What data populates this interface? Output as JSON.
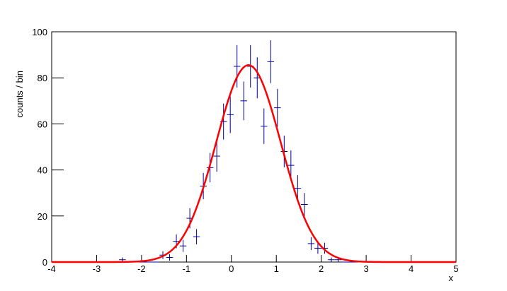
{
  "chart_data": {
    "type": "histogram",
    "x_label": "x",
    "y_label": "counts / bin",
    "bins": [
      -4,
      -3.85,
      -3.7,
      -3.55,
      -3.4,
      -3.25,
      -3.1,
      -2.95,
      -2.8,
      -2.65,
      -2.5,
      -2.35,
      -2.2,
      -2.05,
      -1.9,
      -1.75,
      -1.6,
      -1.45,
      -1.3,
      -1.15,
      -1,
      -0.85,
      -0.7,
      -0.55,
      -0.4,
      -0.25,
      -0.1,
      0.05,
      0.2,
      0.35,
      0.5,
      0.65,
      0.8,
      0.95,
      1.1,
      1.25,
      1.4,
      1.55,
      1.7,
      1.85,
      2,
      2.15,
      2.3,
      2.45,
      2.6,
      2.75,
      2.9,
      3.05,
      3.2,
      3.35,
      3.5,
      3.65,
      3.8,
      3.95,
      4.1,
      4.25,
      4.4,
      4.55,
      4.7,
      4.85,
      5
    ],
    "values": [
      0,
      0,
      0,
      0,
      0,
      0,
      0,
      0,
      0,
      0,
      1,
      0,
      0,
      0,
      0,
      0,
      3,
      2,
      9,
      7,
      19,
      11,
      33,
      41,
      46,
      61,
      64,
      85,
      70,
      85,
      80,
      59,
      87,
      67,
      48,
      42,
      32,
      25,
      8,
      6,
      6,
      1,
      1,
      0,
      0,
      0,
      0,
      0,
      0,
      0,
      0,
      0,
      0,
      0,
      0,
      0,
      0,
      0,
      0,
      0
    ],
    "errors": [
      0,
      0,
      0,
      0,
      0,
      0,
      0,
      0,
      0,
      0,
      1,
      0,
      0,
      0,
      0,
      0,
      1.7,
      1.4,
      3,
      2.6,
      4.4,
      3.3,
      5.7,
      6.4,
      6.8,
      7.8,
      8,
      9.2,
      8.4,
      9.2,
      8.9,
      7.7,
      9.3,
      8.2,
      6.9,
      6.5,
      5.7,
      5,
      2.8,
      2.4,
      2.4,
      1,
      1,
      0,
      0,
      0,
      0,
      0,
      0,
      0,
      0,
      0,
      0,
      0,
      0,
      0,
      0,
      0,
      0,
      0
    ],
    "color": "#000099",
    "fit": {
      "constant": 85.5,
      "mean": 0.38,
      "sigma": 0.72,
      "color": "#ff0000"
    },
    "xlim": [
      -4,
      5
    ],
    "ylim": [
      0,
      100
    ],
    "xticks": [
      -4,
      -3,
      -2,
      -1,
      0,
      1,
      2,
      3,
      4,
      5
    ],
    "yticks": [
      0,
      20,
      40,
      60,
      80,
      100
    ]
  }
}
